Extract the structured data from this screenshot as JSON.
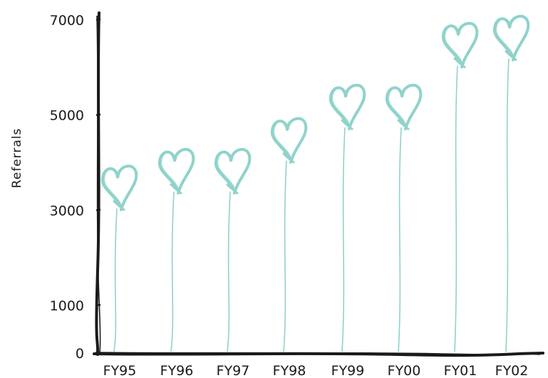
{
  "chart_data": {
    "type": "bar",
    "title": "",
    "xlabel": "",
    "ylabel": "Referrals",
    "categories": [
      "FY95",
      "FY96",
      "FY97",
      "FY98",
      "FY99",
      "FY00",
      "FY01",
      "FY02"
    ],
    "values": [
      3100,
      3450,
      3450,
      4100,
      4800,
      4800,
      6100,
      6250
    ],
    "yticks": [
      0,
      1000,
      3000,
      5000,
      7000
    ],
    "ylim": [
      0,
      7000
    ],
    "grid": false,
    "legend": "none",
    "mark_style": "heart-balloon"
  },
  "colors": {
    "mark": "#8fd3cb",
    "axis": "#1a1a1a",
    "text": "#1a1a1a"
  }
}
